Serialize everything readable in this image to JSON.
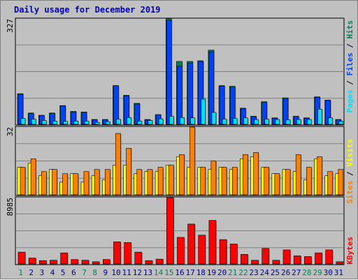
{
  "title": "Daily usage for December 2019",
  "days": [
    "1",
    "2",
    "3",
    "4",
    "5",
    "6",
    "7",
    "8",
    "9",
    "10",
    "11",
    "12",
    "13",
    "14",
    "15",
    "16",
    "17",
    "18",
    "19",
    "20",
    "21",
    "22",
    "23",
    "24",
    "25",
    "26",
    "27",
    "28",
    "29",
    "30",
    "31"
  ],
  "weekend_days": [
    1,
    7,
    8,
    14,
    15,
    21,
    22,
    28,
    29
  ],
  "colors": {
    "pages": "#00e0ff",
    "files": "#0040ff",
    "hits": "#00805c",
    "visits": "#ffff00",
    "sites": "#ff8000",
    "kbytes": "#ff0000",
    "weekday_label": "#000080",
    "weekend_label": "#00805c"
  },
  "chart_data": [
    {
      "type": "bar",
      "name": "hits-files-pages",
      "ymax_label": "327",
      "ylim": [
        0,
        327
      ],
      "legend": [
        "Pages",
        "Files",
        "Hits"
      ],
      "series": [
        {
          "name": "Hits",
          "values": [
            95,
            35,
            28,
            35,
            58,
            40,
            38,
            15,
            15,
            120,
            90,
            65,
            15,
            30,
            327,
            195,
            195,
            197,
            230,
            120,
            118,
            50,
            25,
            70,
            20,
            82,
            25,
            20,
            85,
            75,
            15
          ]
        },
        {
          "name": "Files",
          "values": [
            93,
            33,
            27,
            33,
            57,
            38,
            37,
            14,
            14,
            120,
            88,
            63,
            13,
            30,
            322,
            180,
            190,
            195,
            225,
            118,
            115,
            48,
            24,
            68,
            19,
            80,
            24,
            19,
            84,
            74,
            14
          ]
        },
        {
          "name": "Pages",
          "values": [
            18,
            16,
            12,
            10,
            9,
            10,
            10,
            6,
            8,
            16,
            21,
            10,
            12,
            17,
            25,
            21,
            20,
            78,
            37,
            16,
            18,
            20,
            15,
            16,
            15,
            14,
            15,
            15,
            47,
            20,
            9
          ]
        }
      ]
    },
    {
      "type": "bar",
      "name": "visits-sites",
      "ymax_label": "32",
      "ylim": [
        0,
        32
      ],
      "legend": [
        "Sites",
        "Visits"
      ],
      "series": [
        {
          "name": "Visits",
          "values": [
            13,
            15,
            9,
            12,
            6,
            10,
            6,
            9,
            7,
            14,
            14,
            10,
            11,
            11,
            14,
            18,
            13,
            13,
            12,
            13,
            12,
            17,
            18,
            13,
            10,
            12,
            11,
            7,
            17,
            9,
            10
          ]
        },
        {
          "name": "Sites",
          "values": [
            13,
            17,
            11,
            12,
            10,
            10,
            11,
            12,
            12,
            29,
            22,
            12,
            12,
            13,
            14,
            19,
            32,
            13,
            16,
            13,
            13,
            19,
            20,
            13,
            10,
            12,
            19,
            13,
            18,
            11,
            12
          ]
        }
      ]
    },
    {
      "type": "bar",
      "name": "kbytes",
      "ymax_label": "8985",
      "ylim": [
        0,
        8985
      ],
      "legend": [
        "KBytes"
      ],
      "series": [
        {
          "name": "KBytes",
          "values": [
            1600,
            800,
            450,
            500,
            1500,
            600,
            500,
            300,
            600,
            3000,
            2900,
            1600,
            450,
            650,
            8985,
            3600,
            5400,
            3900,
            5900,
            3300,
            2700,
            1300,
            500,
            2100,
            500,
            1900,
            1100,
            1000,
            1500,
            1900,
            300
          ]
        }
      ]
    }
  ]
}
